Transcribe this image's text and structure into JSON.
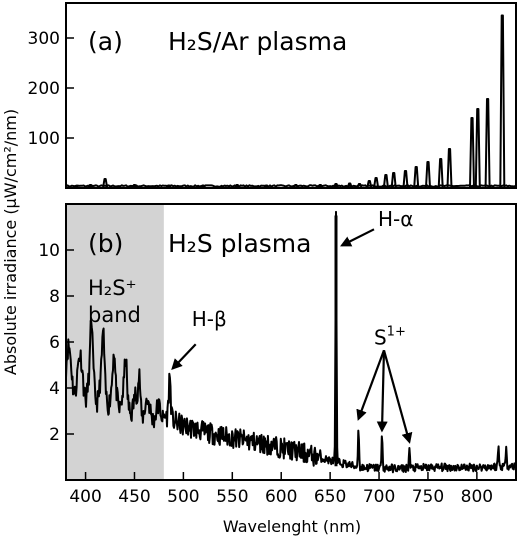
{
  "chart_data": [
    {
      "type": "line",
      "panel": "(a)",
      "annotation": "H₂S/Ar plasma",
      "xlim": [
        380,
        840
      ],
      "ylim": [
        0,
        370
      ],
      "yticks": [
        100,
        200,
        300
      ],
      "grid": false,
      "series": [
        {
          "values_type": "emission_lines",
          "lines": [
            {
              "x": 390,
              "y": 4
            },
            {
              "x": 405,
              "y": 6
            },
            {
              "x": 420,
              "y": 18
            },
            {
              "x": 450,
              "y": 6
            },
            {
              "x": 485,
              "y": 5
            },
            {
              "x": 520,
              "y": 5
            },
            {
              "x": 555,
              "y": 6
            },
            {
              "x": 585,
              "y": 5
            },
            {
              "x": 615,
              "y": 6
            },
            {
              "x": 640,
              "y": 6
            },
            {
              "x": 656,
              "y": 8
            },
            {
              "x": 670,
              "y": 9
            },
            {
              "x": 680,
              "y": 8
            },
            {
              "x": 690,
              "y": 14
            },
            {
              "x": 697,
              "y": 20
            },
            {
              "x": 707,
              "y": 26
            },
            {
              "x": 715,
              "y": 30
            },
            {
              "x": 727,
              "y": 34
            },
            {
              "x": 738,
              "y": 42
            },
            {
              "x": 750,
              "y": 52
            },
            {
              "x": 763,
              "y": 58
            },
            {
              "x": 772,
              "y": 78
            },
            {
              "x": 795,
              "y": 140
            },
            {
              "x": 801,
              "y": 158
            },
            {
              "x": 811,
              "y": 178
            },
            {
              "x": 826,
              "y": 345
            }
          ]
        }
      ]
    },
    {
      "type": "line",
      "panel": "(b)",
      "annotation": "H₂S plasma",
      "xlabel": "Wavelenght (nm)",
      "ylabel": "Absolute irradiance (μW/cm²/nm)",
      "xlim": [
        380,
        840
      ],
      "ylim": [
        0,
        12
      ],
      "xticks": [
        400,
        450,
        500,
        550,
        600,
        650,
        700,
        750,
        800
      ],
      "yticks": [
        2,
        4,
        6,
        8,
        10
      ],
      "grid": false,
      "shaded_region": {
        "x": [
          380,
          480
        ],
        "label_line1": "H₂S⁺",
        "label_line2": "band",
        "color": "#d3d3d3"
      },
      "series": [
        {
          "continuum": [
            {
              "x": 380,
              "y": 4.9
            },
            {
              "x": 400,
              "y": 4.4
            },
            {
              "x": 425,
              "y": 3.9
            },
            {
              "x": 450,
              "y": 3.3
            },
            {
              "x": 480,
              "y": 2.8
            },
            {
              "x": 500,
              "y": 2.35
            },
            {
              "x": 530,
              "y": 2.0
            },
            {
              "x": 560,
              "y": 1.75
            },
            {
              "x": 590,
              "y": 1.5
            },
            {
              "x": 620,
              "y": 1.2
            },
            {
              "x": 650,
              "y": 0.85
            },
            {
              "x": 680,
              "y": 0.55
            },
            {
              "x": 720,
              "y": 0.5
            },
            {
              "x": 760,
              "y": 0.55
            },
            {
              "x": 800,
              "y": 0.55
            },
            {
              "x": 830,
              "y": 0.6
            }
          ],
          "lines": [
            {
              "x": 406,
              "y": 6.3
            },
            {
              "x": 418,
              "y": 5.8
            },
            {
              "x": 429,
              "y": 5.0
            },
            {
              "x": 441,
              "y": 4.8
            },
            {
              "x": 455,
              "y": 4.6
            },
            {
              "x": 486,
              "y": 4.5
            },
            {
              "x": 656,
              "y": 11.5
            },
            {
              "x": 679,
              "y": 2.4
            },
            {
              "x": 703,
              "y": 1.9
            },
            {
              "x": 731,
              "y": 1.4
            },
            {
              "x": 822,
              "y": 1.5
            },
            {
              "x": 830,
              "y": 1.6
            }
          ]
        }
      ],
      "annotations": [
        {
          "text": "H-α",
          "x": 656,
          "y": 11.5
        },
        {
          "text": "H-β",
          "x": 486,
          "y": 4.5
        },
        {
          "text_main": "S",
          "text_sup": "1+",
          "targets": [
            679,
            703,
            731
          ]
        }
      ]
    }
  ]
}
